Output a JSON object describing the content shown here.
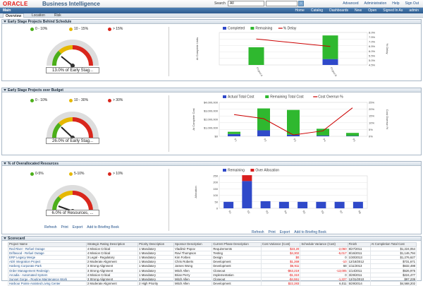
{
  "header": {
    "logo": "ORACLE",
    "title": "Business Intelligence",
    "search_label": "Search",
    "search_scope": "All",
    "links": [
      "Advanced",
      "Administration",
      "Help",
      "Sign Out"
    ],
    "menu": [
      "Home",
      "Catalog",
      "Dashboards",
      "New",
      "Open",
      "Signed In As",
      "admin"
    ]
  },
  "tabs": {
    "main": "Main",
    "items": [
      "Overview",
      "Location",
      "Risk"
    ]
  },
  "sections": {
    "schedule": {
      "title": "Early Stage Projects Behind Schedule",
      "legend": [
        "0 - 10%",
        "10 - 15%",
        "> 15%"
      ],
      "gauge_label": "13.0% of Early Stag...",
      "gauge_value": 13.0,
      "chart_legend": [
        "Completed",
        "Remaining",
        "% Delay"
      ],
      "ylabel": "At Complete Units",
      "y2label": "% Delay",
      "y2ticks": [
        "8.0%",
        "7.5%",
        "7.0%",
        "6.5%",
        "6.0%",
        "5.5%",
        "5.0%",
        "4.5%"
      ]
    },
    "budget": {
      "title": "Early Stage Projects over Budget",
      "legend": [
        "0 - 10%",
        "10 - 30%",
        "> 30%"
      ],
      "gauge_label": "26.0% of Early Stag...",
      "gauge_value": 26.0,
      "chart_legend": [
        "Actual Total Cost",
        "Remaining Total Cost",
        "Cost Overrun %"
      ],
      "ylabel": "At Complete Cost",
      "y2label": "Cost Overrun %",
      "yticks": [
        "$4,000,000",
        "$3,000,000",
        "$2,000,000",
        "$1,000,000",
        "$0"
      ],
      "y2ticks": [
        "25%",
        "20%",
        "15%",
        "10%",
        "5%",
        "0%"
      ]
    },
    "resources": {
      "title": "% of Overallocated Resources",
      "legend": [
        "0-5%",
        "5-10%",
        "> 10%"
      ],
      "gauge_label": "6.0% of Resources, ...",
      "gauge_value": 6.0,
      "chart_legend": [
        "Remaining",
        "Over Allocation"
      ],
      "ylabel": "Allocation",
      "yticks": [
        "250",
        "200",
        "150",
        "100",
        "50",
        "0"
      ],
      "links": [
        "Refresh",
        "Print",
        "Export",
        "Add to Briefing Book"
      ]
    }
  },
  "scorecard": {
    "title": "Scorecard",
    "columns": [
      "Project Name",
      "Strategic Rating Description",
      "Priority Description",
      "Sponsor Description",
      "Current Phase Description",
      "Cost Variance (Cost)",
      "Schedule Variance (Cost)",
      "Finish",
      "At Completion Total Cost"
    ],
    "rows": [
      [
        "Red River - Refuel Outage",
        "4 Mission Critical",
        "1 Mandatory",
        "Vladimir Popov",
        "Requirements",
        "$23,20",
        "-2,060",
        "8/27/2011",
        "$1,224,054"
      ],
      [
        "Driftwood - Refuel Outage",
        "4 Mission Critical",
        "1 Mandatory",
        "Ravi Thompson",
        "Testing",
        "$4,302",
        "-5,017",
        "8/16/2011",
        "$1,146,794"
      ],
      [
        "ERP Legacy Merge",
        "3 Legal - Regulatory",
        "1 Mandatory",
        "Kim Forbes",
        "Design",
        "$0",
        "0",
        "1/30/2013",
        "$1,276,627"
      ],
      [
        "AD/I Integration Project",
        "2 Moderate Alignment",
        "1 Mandatory",
        "Chris Roberts",
        "Development",
        "$1,269",
        "-10",
        "12/18/2012",
        "$731,671"
      ],
      [
        "Harberg Corporate Park",
        "3 Strong Alignment",
        "1 Mandatory",
        "James Wong",
        "Development",
        "$6,911",
        "68",
        "1/11/2013",
        "$632,498"
      ],
      [
        "Order Management Redesign",
        "3 Strong Alignment",
        "1 Mandatory",
        "Mitch Allen",
        "Closeout",
        "-$63,219",
        "-13,005",
        "1/14/2011",
        "$526,975"
      ],
      [
        "Arcadia - Automated System",
        "4 Mission Critical",
        "1 Mandatory",
        "Brian Perry",
        "Implementation",
        "-$1,310",
        "0",
        "3/29/2011",
        "$224,477"
      ],
      [
        "Sunset Gorge - Routine Maintenance Work",
        "3 Strong Alignment",
        "1 Mandatory",
        "Mitch Allen",
        "Closeout",
        "-$4,551",
        "-1,227",
        "12/31/2010",
        "$97,239"
      ],
      [
        "Harbour Pointe Assisted Living Center",
        "2 Moderate Alignment",
        "2 High Priority",
        "Mitch Allen",
        "Development",
        "$22,283",
        "6,011",
        "5/29/2014",
        "$4,568,202"
      ]
    ]
  },
  "chart_data": [
    {
      "type": "bar",
      "title": "",
      "categories": [
        "Project A",
        "Project B"
      ],
      "series": [
        {
          "name": "Completed",
          "values": [
            0,
            10
          ]
        },
        {
          "name": "Remaining",
          "values": [
            30,
            40
          ]
        },
        {
          "name": "% Delay",
          "values": [
            7.3,
            6.5
          ]
        }
      ],
      "ylabel": "At Complete Units",
      "y2label": "% Delay",
      "ylim": [
        0,
        55
      ],
      "y2lim": [
        4.5,
        8.0
      ]
    },
    {
      "type": "bar",
      "title": "",
      "categories": [
        "P1",
        "P2",
        "P3",
        "P4",
        "P5"
      ],
      "series": [
        {
          "name": "Actual Total Cost",
          "values": [
            300000,
            800000,
            200000,
            100000,
            50000
          ]
        },
        {
          "name": "Remaining Total Cost",
          "values": [
            300000,
            2900000,
            3300000,
            900000,
            400000
          ]
        },
        {
          "name": "Cost Overrun %",
          "values": [
            16,
            13,
            1,
            4,
            21
          ]
        }
      ],
      "ylabel": "At Complete Cost",
      "y2label": "Cost Overrun %",
      "ylim": [
        0,
        4500000
      ],
      "y2lim": [
        0,
        25
      ]
    },
    {
      "type": "bar",
      "title": "",
      "categories": [
        "R1",
        "R2",
        "R3",
        "R4",
        "R5",
        "R6",
        "R7",
        "R8"
      ],
      "series": [
        {
          "name": "Remaining",
          "values": [
            50,
            210,
            55,
            50,
            50,
            50,
            50,
            50
          ]
        },
        {
          "name": "Over Allocation",
          "values": [
            0,
            45,
            0,
            0,
            0,
            0,
            0,
            0
          ]
        }
      ],
      "ylabel": "Allocation",
      "ylim": [
        0,
        250
      ]
    }
  ]
}
